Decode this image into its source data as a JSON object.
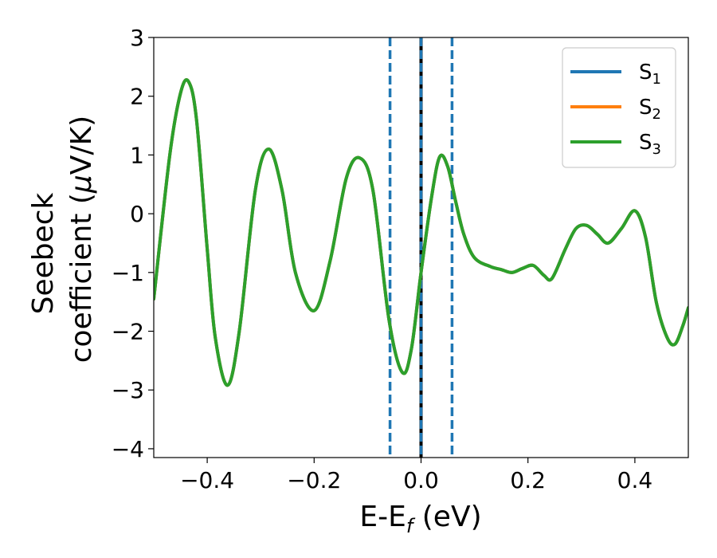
{
  "chart_data": {
    "type": "line",
    "xlabel": "E-E",
    "xlabel_sub": "f",
    "xlabel_unit": " (eV)",
    "ylabel_line1": "Seebeck",
    "ylabel_line2": "coefficient  (",
    "ylabel_mu": "μ",
    "ylabel_unit": "V/K)",
    "xlim": [
      -0.5,
      0.5
    ],
    "ylim": [
      -4.15,
      3.0
    ],
    "xticks": [
      -0.4,
      -0.2,
      0.0,
      0.2,
      0.4
    ],
    "xtick_labels": [
      "−0.4",
      "−0.2",
      "0.0",
      "0.2",
      "0.4"
    ],
    "yticks": [
      -4,
      -3,
      -2,
      -1,
      0,
      1,
      2,
      3
    ],
    "ytick_labels": [
      "−4",
      "−3",
      "−2",
      "−1",
      "0",
      "1",
      "2",
      "3"
    ],
    "grid": false,
    "legend_position": "top-right",
    "vlines": [
      {
        "x": -0.058,
        "style": "dashed",
        "color": "#1f77b4"
      },
      {
        "x": 0.0,
        "style": "solid",
        "color": "#000000"
      },
      {
        "x": 0.0,
        "style": "dashed",
        "color": "#1f77b4"
      },
      {
        "x": 0.058,
        "style": "dashed",
        "color": "#1f77b4"
      }
    ],
    "x": [
      -0.5,
      -0.47,
      -0.45,
      -0.435,
      -0.42,
      -0.4,
      -0.385,
      -0.362,
      -0.34,
      -0.31,
      -0.285,
      -0.26,
      -0.235,
      -0.2,
      -0.17,
      -0.14,
      -0.115,
      -0.09,
      -0.06,
      -0.035,
      -0.018,
      0.0,
      0.02,
      0.035,
      0.05,
      0.065,
      0.08,
      0.1,
      0.13,
      0.15,
      0.17,
      0.19,
      0.21,
      0.23,
      0.245,
      0.27,
      0.29,
      0.31,
      0.33,
      0.35,
      0.375,
      0.4,
      0.42,
      0.44,
      0.46,
      0.475,
      0.49,
      0.5
    ],
    "series": [
      {
        "name": "S",
        "name_sub": "1",
        "color": "#1f77b4",
        "values": [
          -1.45,
          1.0,
          2.05,
          2.25,
          1.6,
          -0.6,
          -2.1,
          -2.92,
          -2.0,
          0.4,
          1.1,
          0.4,
          -1.0,
          -1.65,
          -0.8,
          0.6,
          0.95,
          0.4,
          -1.8,
          -2.7,
          -2.3,
          -1.0,
          0.3,
          0.97,
          0.8,
          0.2,
          -0.35,
          -0.75,
          -0.9,
          -0.95,
          -1.0,
          -0.93,
          -0.88,
          -1.05,
          -1.1,
          -0.6,
          -0.25,
          -0.2,
          -0.35,
          -0.5,
          -0.25,
          0.05,
          -0.4,
          -1.5,
          -2.1,
          -2.22,
          -1.9,
          -1.6
        ]
      },
      {
        "name": "S",
        "name_sub": "2",
        "color": "#ff7f0e",
        "values": [
          -1.45,
          1.0,
          2.05,
          2.25,
          1.6,
          -0.6,
          -2.1,
          -2.92,
          -2.0,
          0.4,
          1.1,
          0.4,
          -1.0,
          -1.65,
          -0.8,
          0.6,
          0.95,
          0.4,
          -1.8,
          -2.7,
          -2.3,
          -1.0,
          0.3,
          0.97,
          0.8,
          0.2,
          -0.35,
          -0.75,
          -0.9,
          -0.95,
          -1.0,
          -0.93,
          -0.88,
          -1.05,
          -1.1,
          -0.6,
          -0.25,
          -0.2,
          -0.35,
          -0.5,
          -0.25,
          0.05,
          -0.4,
          -1.5,
          -2.1,
          -2.22,
          -1.9,
          -1.6
        ]
      },
      {
        "name": "S",
        "name_sub": "3",
        "color": "#2ca02c",
        "values": [
          -1.45,
          1.0,
          2.05,
          2.25,
          1.6,
          -0.6,
          -2.1,
          -2.92,
          -2.0,
          0.4,
          1.1,
          0.4,
          -1.0,
          -1.65,
          -0.8,
          0.6,
          0.95,
          0.4,
          -1.8,
          -2.7,
          -2.3,
          -1.0,
          0.3,
          0.97,
          0.8,
          0.2,
          -0.35,
          -0.75,
          -0.9,
          -0.95,
          -1.0,
          -0.93,
          -0.88,
          -1.05,
          -1.1,
          -0.6,
          -0.25,
          -0.2,
          -0.35,
          -0.5,
          -0.25,
          0.05,
          -0.4,
          -1.5,
          -2.1,
          -2.22,
          -1.9,
          -1.6
        ]
      }
    ]
  }
}
